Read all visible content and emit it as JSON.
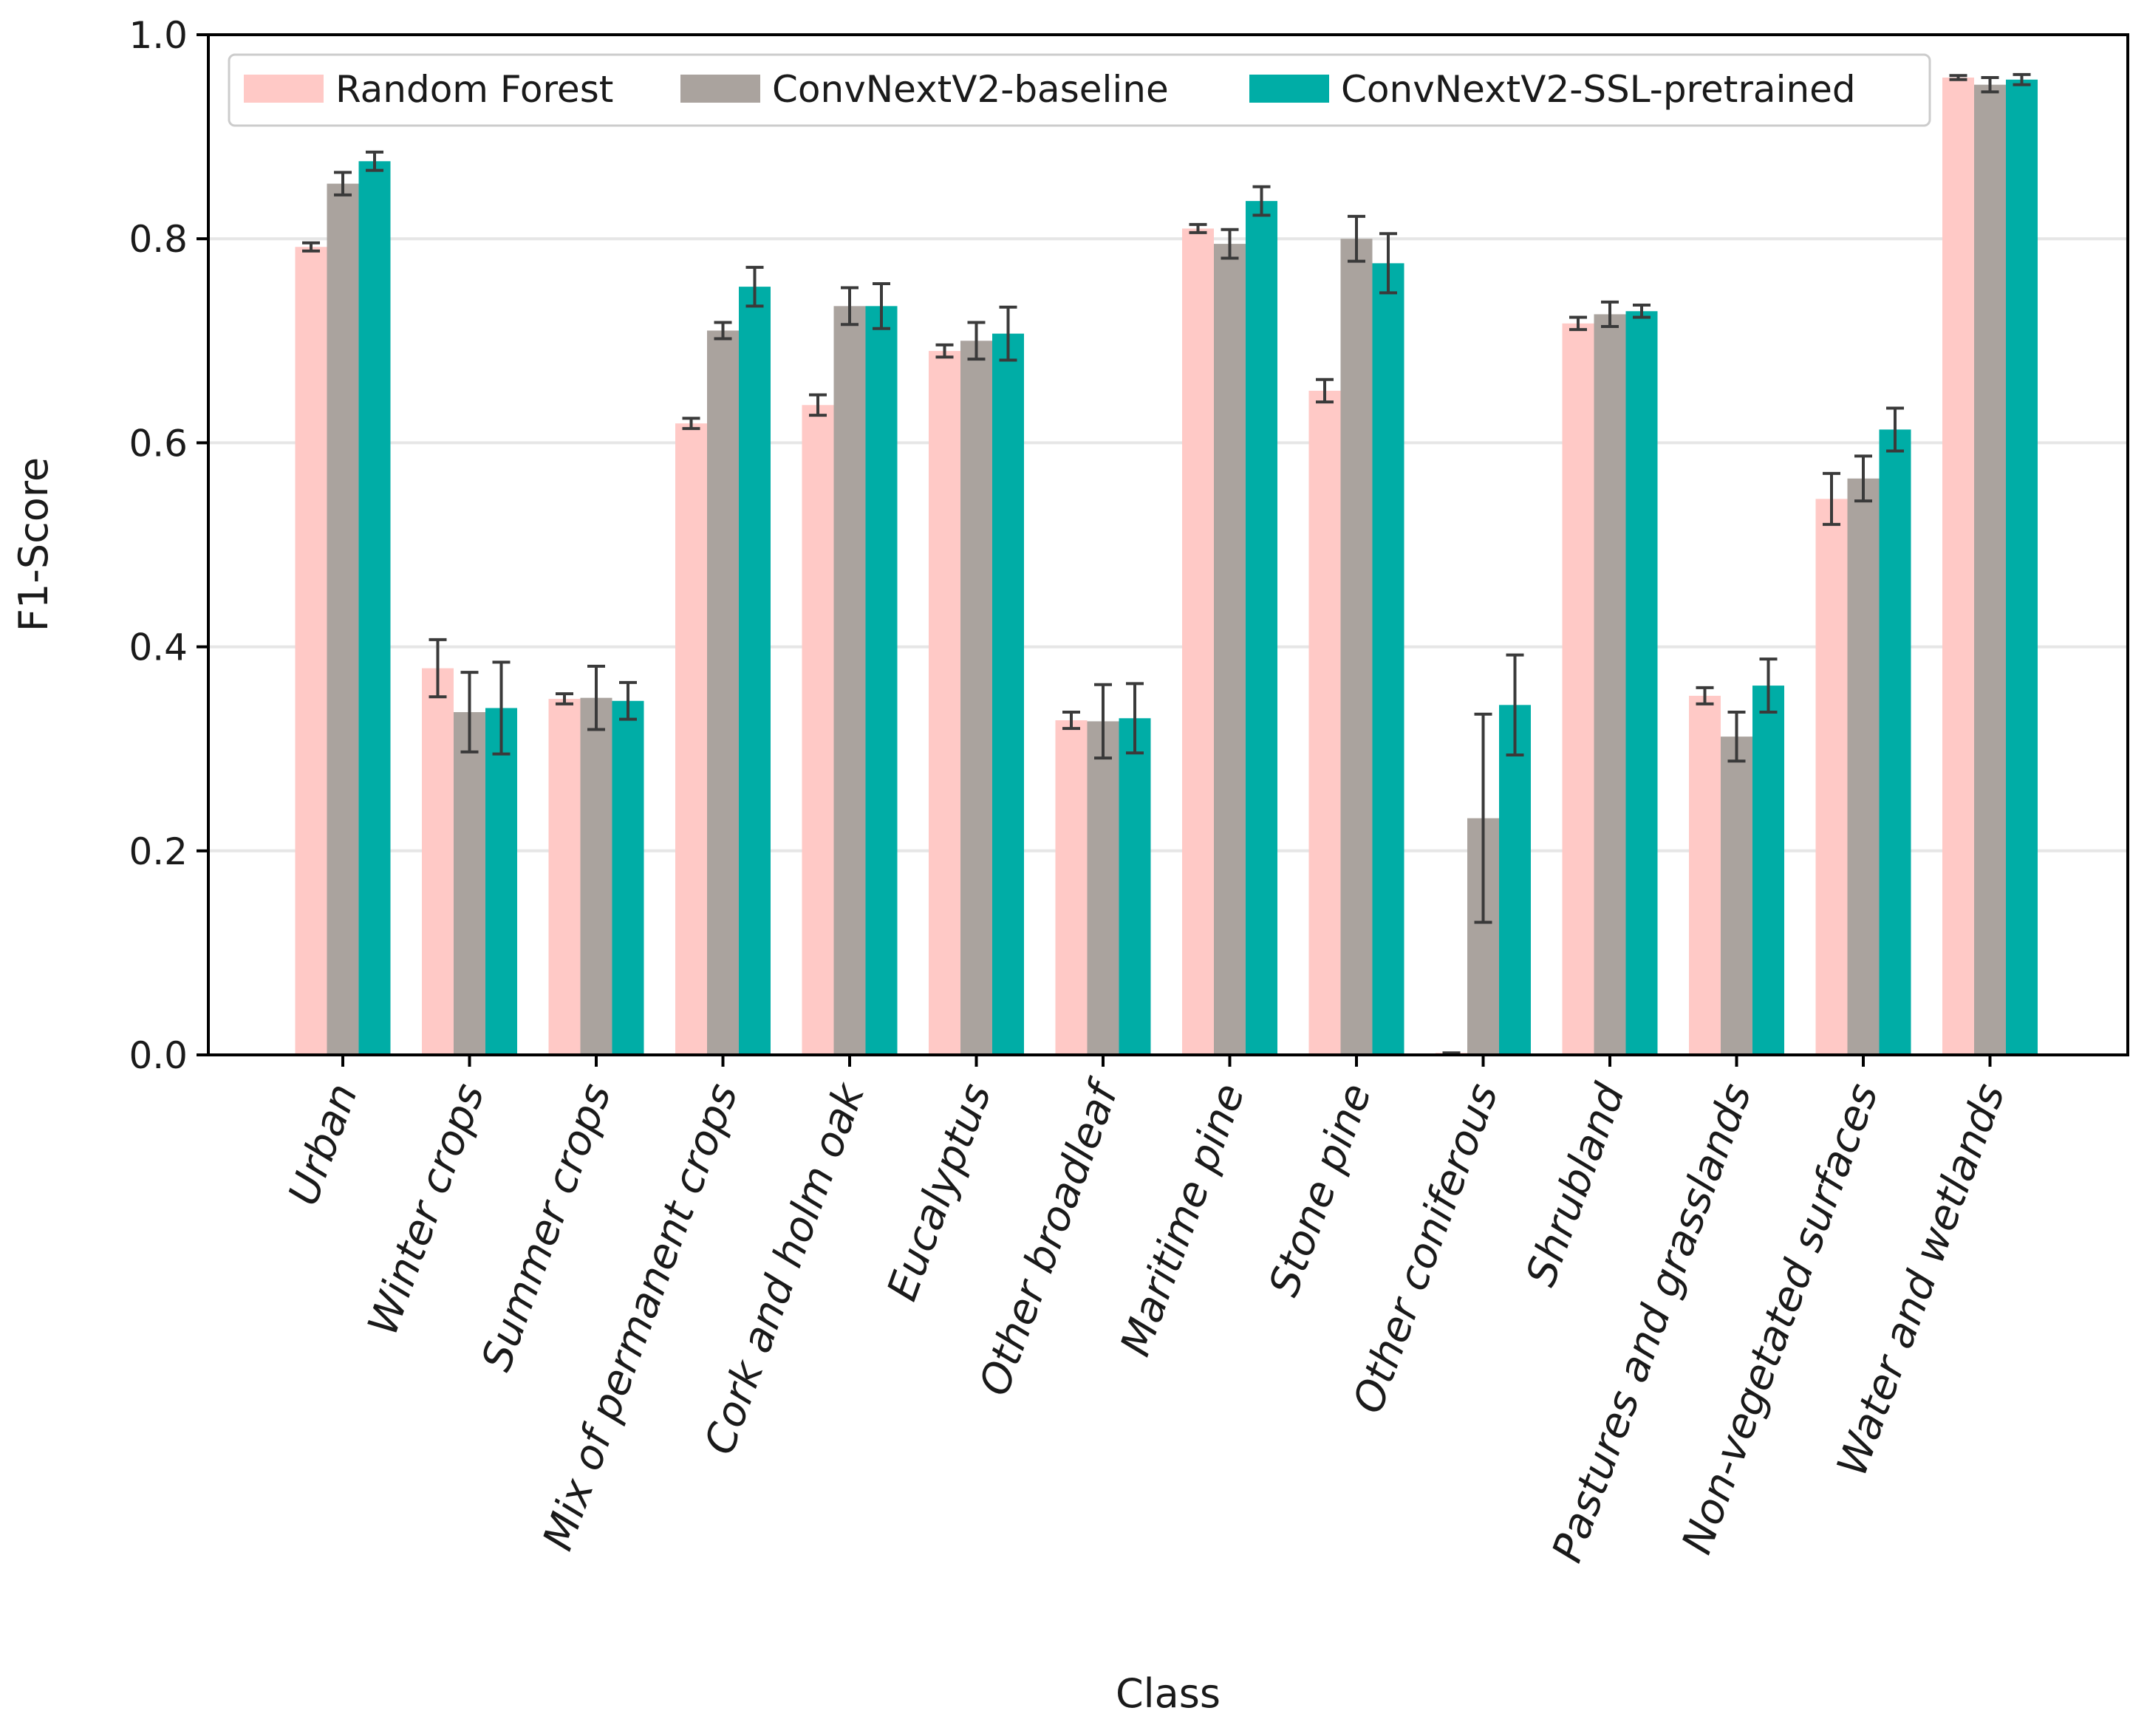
{
  "chart_data": {
    "type": "bar",
    "xlabel": "Class",
    "ylabel": "F1-Score",
    "ylim": [
      0,
      1.0
    ],
    "yticks": [
      "0.0",
      "0.2",
      "0.4",
      "0.6",
      "0.8",
      "1.0"
    ],
    "grid": "horizontal",
    "legend_position": "top",
    "categories": [
      "Urban",
      "Winter crops",
      "Summer crops",
      "Mix of permanent crops",
      "Cork and holm oak",
      "Eucalyptus",
      "Other broadleaf",
      "Maritime pine",
      "Stone pine",
      "Other coniferous",
      "Shrubland",
      "Pastures and grasslands",
      "Non-vegetated surfaces",
      "Water and wetlands"
    ],
    "series": [
      {
        "name": "Random Forest",
        "color": "#ffc9c6",
        "values": [
          0.792,
          0.379,
          0.349,
          0.619,
          0.637,
          0.69,
          0.328,
          0.81,
          0.651,
          0.002,
          0.717,
          0.352,
          0.545,
          0.958
        ],
        "errors": [
          0.004,
          0.028,
          0.005,
          0.005,
          0.01,
          0.006,
          0.008,
          0.004,
          0.011,
          0.0,
          0.006,
          0.008,
          0.025,
          0.002
        ]
      },
      {
        "name": "ConvNextV2-baseline",
        "color": "#aaa39e",
        "values": [
          0.854,
          0.336,
          0.35,
          0.71,
          0.734,
          0.7,
          0.327,
          0.795,
          0.8,
          0.232,
          0.726,
          0.312,
          0.565,
          0.951
        ],
        "errors": [
          0.011,
          0.039,
          0.031,
          0.008,
          0.018,
          0.018,
          0.036,
          0.014,
          0.022,
          0.102,
          0.012,
          0.024,
          0.022,
          0.007
        ]
      },
      {
        "name": "ConvNextV2-SSL-pretrained",
        "color": "#00ada6",
        "values": [
          0.876,
          0.34,
          0.347,
          0.753,
          0.734,
          0.707,
          0.33,
          0.837,
          0.776,
          0.343,
          0.729,
          0.362,
          0.613,
          0.956
        ],
        "errors": [
          0.009,
          0.045,
          0.018,
          0.019,
          0.022,
          0.026,
          0.034,
          0.014,
          0.029,
          0.049,
          0.006,
          0.026,
          0.021,
          0.005
        ]
      }
    ]
  }
}
